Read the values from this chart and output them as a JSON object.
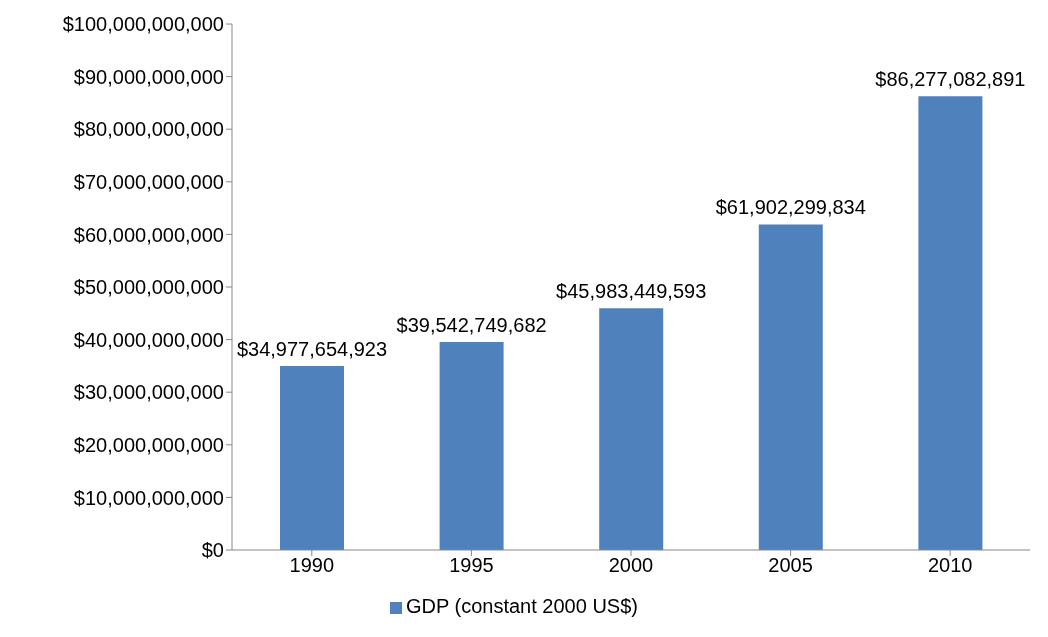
{
  "chart_data": {
    "type": "bar",
    "categories": [
      "1990",
      "1995",
      "2000",
      "2005",
      "2010"
    ],
    "series": [
      {
        "name": "GDP (constant 2000 US$)",
        "color": "#4f81bd",
        "values": [
          34977654923,
          39542749682,
          45983449593,
          61902299834,
          86277082891
        ],
        "value_labels": [
          "$34,977,654,923",
          "$39,542,749,682",
          "$45,983,449,593",
          "$61,902,299,834",
          "$86,277,082,891"
        ]
      }
    ],
    "ylim": [
      0,
      100000000000
    ],
    "yticks": [
      {
        "value": 0,
        "label": "$0"
      },
      {
        "value": 10000000000,
        "label": "$10,000,000,000"
      },
      {
        "value": 20000000000,
        "label": "$20,000,000,000"
      },
      {
        "value": 30000000000,
        "label": "$30,000,000,000"
      },
      {
        "value": 40000000000,
        "label": "$40,000,000,000"
      },
      {
        "value": 50000000000,
        "label": "$50,000,000,000"
      },
      {
        "value": 60000000000,
        "label": "$60,000,000,000"
      },
      {
        "value": 70000000000,
        "label": "$70,000,000,000"
      },
      {
        "value": 80000000000,
        "label": "$80,000,000,000"
      },
      {
        "value": 90000000000,
        "label": "$90,000,000,000"
      },
      {
        "value": 100000000000,
        "label": "$100,000,000,000"
      }
    ],
    "grid": false,
    "legend": "bottom"
  }
}
